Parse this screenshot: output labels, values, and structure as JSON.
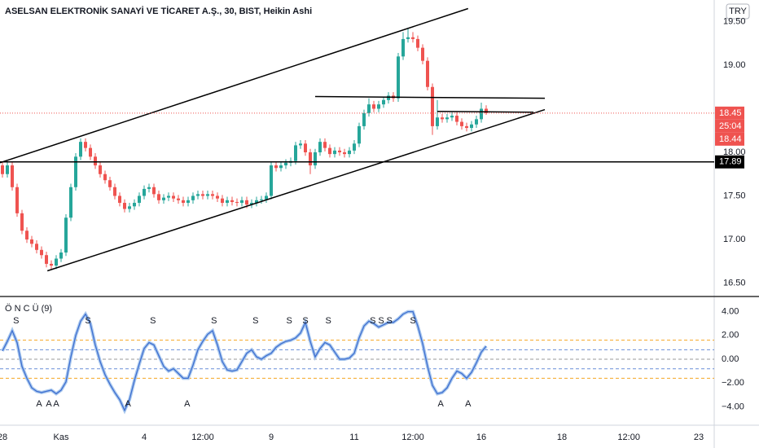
{
  "chart_data": [
    {
      "type": "candlestick",
      "title": "ASELSAN ELEKTRONİK SANAYİ VE TİCARET A.Ş., 30, BIST, Heikin Ashi",
      "currency": "TRY",
      "up_color": "#26a69a",
      "down_color": "#ef5350",
      "xlim": [
        -0.5,
        145.5
      ],
      "xticks": [
        {
          "value": 0,
          "label": "28"
        },
        {
          "value": 12,
          "label": "Kas"
        },
        {
          "value": 29,
          "label": "4"
        },
        {
          "value": 41,
          "label": "12:00"
        },
        {
          "value": 55,
          "label": "9"
        },
        {
          "value": 72,
          "label": "11"
        },
        {
          "value": 84,
          "label": "12:00"
        },
        {
          "value": 98,
          "label": "16"
        },
        {
          "value": 114.5,
          "label": "18"
        },
        {
          "value": 128.2,
          "label": "12:00"
        },
        {
          "value": 142.5,
          "label": "23"
        }
      ],
      "ylim": [
        16.364,
        19.748
      ],
      "yticks": [
        {
          "value": 19.5,
          "label": "19.50"
        },
        {
          "value": 19,
          "label": "19.00"
        },
        {
          "value": 18,
          "label": "18.00"
        },
        {
          "value": 17.5,
          "label": "17.50"
        },
        {
          "value": 17,
          "label": "17.00"
        },
        {
          "value": 16.5,
          "label": "16.50"
        }
      ],
      "candles": [
        [
          17.85,
          17.89,
          17.71,
          17.75
        ],
        [
          17.75,
          17.89,
          17.71,
          17.85
        ],
        [
          17.85,
          17.89,
          17.56,
          17.6
        ],
        [
          17.6,
          17.64,
          17.26,
          17.3
        ],
        [
          17.3,
          17.34,
          17.06,
          17.1
        ],
        [
          17.1,
          17.14,
          16.96,
          17.0
        ],
        [
          17.0,
          17.04,
          16.91,
          16.95
        ],
        [
          16.95,
          16.99,
          16.84,
          16.88
        ],
        [
          16.88,
          16.92,
          16.78,
          16.82
        ],
        [
          16.82,
          16.86,
          16.68,
          16.72
        ],
        [
          16.72,
          16.76,
          16.66,
          16.7
        ],
        [
          16.7,
          16.82,
          16.66,
          16.78
        ],
        [
          16.78,
          16.89,
          16.74,
          16.85
        ],
        [
          16.85,
          17.29,
          16.81,
          17.25
        ],
        [
          17.25,
          17.64,
          17.21,
          17.6
        ],
        [
          17.6,
          17.99,
          17.56,
          17.95
        ],
        [
          17.95,
          18.16,
          17.91,
          18.12
        ],
        [
          18.12,
          18.16,
          18.01,
          18.05
        ],
        [
          18.05,
          18.09,
          17.91,
          17.95
        ],
        [
          17.95,
          17.99,
          17.81,
          17.85
        ],
        [
          17.85,
          17.89,
          17.71,
          17.75
        ],
        [
          17.75,
          17.79,
          17.64,
          17.68
        ],
        [
          17.68,
          17.72,
          17.56,
          17.6
        ],
        [
          17.6,
          17.64,
          17.46,
          17.5
        ],
        [
          17.5,
          17.54,
          17.38,
          17.42
        ],
        [
          17.42,
          17.46,
          17.31,
          17.35
        ],
        [
          17.35,
          17.42,
          17.31,
          17.38
        ],
        [
          17.38,
          17.46,
          17.34,
          17.42
        ],
        [
          17.42,
          17.54,
          17.38,
          17.5
        ],
        [
          17.5,
          17.62,
          17.46,
          17.58
        ],
        [
          17.58,
          17.64,
          17.54,
          17.6
        ],
        [
          17.6,
          17.64,
          17.48,
          17.52
        ],
        [
          17.52,
          17.56,
          17.41,
          17.45
        ],
        [
          17.45,
          17.52,
          17.41,
          17.48
        ],
        [
          17.48,
          17.54,
          17.44,
          17.5
        ],
        [
          17.5,
          17.54,
          17.43,
          17.47
        ],
        [
          17.47,
          17.51,
          17.41,
          17.45
        ],
        [
          17.45,
          17.49,
          17.38,
          17.42
        ],
        [
          17.42,
          17.49,
          17.38,
          17.45
        ],
        [
          17.45,
          17.54,
          17.41,
          17.5
        ],
        [
          17.5,
          17.56,
          17.46,
          17.52
        ],
        [
          17.52,
          17.56,
          17.46,
          17.5
        ],
        [
          17.5,
          17.56,
          17.46,
          17.52
        ],
        [
          17.52,
          17.56,
          17.46,
          17.5
        ],
        [
          17.5,
          17.54,
          17.43,
          17.47
        ],
        [
          17.47,
          17.51,
          17.38,
          17.42
        ],
        [
          17.42,
          17.49,
          17.38,
          17.45
        ],
        [
          17.45,
          17.49,
          17.39,
          17.43
        ],
        [
          17.43,
          17.47,
          17.38,
          17.42
        ],
        [
          17.42,
          17.49,
          17.38,
          17.45
        ],
        [
          17.45,
          17.49,
          17.36,
          17.4
        ],
        [
          17.4,
          17.46,
          17.36,
          17.42
        ],
        [
          17.42,
          17.49,
          17.38,
          17.45
        ],
        [
          17.45,
          17.5,
          17.41,
          17.46
        ],
        [
          17.46,
          17.54,
          17.42,
          17.5
        ],
        [
          17.5,
          17.89,
          17.46,
          17.85
        ],
        [
          17.85,
          17.89,
          17.78,
          17.82
        ],
        [
          17.82,
          17.89,
          17.78,
          17.85
        ],
        [
          17.85,
          17.92,
          17.81,
          17.88
        ],
        [
          17.88,
          17.94,
          17.84,
          17.9
        ],
        [
          17.9,
          18.12,
          17.86,
          18.08
        ],
        [
          18.08,
          18.14,
          18.04,
          18.1
        ],
        [
          18.1,
          18.14,
          17.96,
          18.0
        ],
        [
          18.0,
          18.04,
          17.75,
          17.85
        ],
        [
          17.85,
          18.04,
          17.81,
          18.0
        ],
        [
          18.0,
          18.16,
          17.96,
          18.12
        ],
        [
          18.12,
          18.16,
          18.01,
          18.05
        ],
        [
          18.05,
          18.09,
          17.94,
          17.98
        ],
        [
          17.98,
          18.06,
          17.94,
          18.02
        ],
        [
          18.02,
          18.06,
          17.96,
          18.0
        ],
        [
          18.0,
          18.04,
          17.94,
          17.98
        ],
        [
          17.98,
          18.06,
          17.94,
          18.02
        ],
        [
          18.02,
          18.14,
          17.98,
          18.1
        ],
        [
          18.1,
          18.34,
          18.06,
          18.3
        ],
        [
          18.3,
          18.49,
          18.26,
          18.45
        ],
        [
          18.45,
          18.62,
          18.41,
          18.55
        ],
        [
          18.55,
          18.59,
          18.46,
          18.5
        ],
        [
          18.5,
          18.59,
          18.46,
          18.55
        ],
        [
          18.55,
          18.64,
          18.51,
          18.6
        ],
        [
          18.6,
          18.69,
          18.56,
          18.65
        ],
        [
          18.65,
          18.69,
          18.58,
          18.62
        ],
        [
          18.62,
          19.14,
          18.58,
          19.1
        ],
        [
          19.1,
          19.38,
          19.06,
          19.3
        ],
        [
          19.3,
          19.42,
          19.26,
          19.32
        ],
        [
          19.32,
          19.38,
          19.26,
          19.3
        ],
        [
          19.3,
          19.34,
          19.16,
          19.2
        ],
        [
          19.2,
          19.24,
          19.01,
          19.05
        ],
        [
          19.05,
          19.09,
          18.71,
          18.75
        ],
        [
          18.75,
          18.79,
          18.2,
          18.3
        ],
        [
          18.3,
          18.6,
          18.26,
          18.4
        ],
        [
          18.4,
          18.44,
          18.34,
          18.38
        ],
        [
          18.38,
          18.44,
          18.34,
          18.4
        ],
        [
          18.4,
          18.46,
          18.36,
          18.42
        ],
        [
          18.42,
          18.46,
          18.31,
          18.35
        ],
        [
          18.35,
          18.39,
          18.26,
          18.3
        ],
        [
          18.3,
          18.34,
          18.24,
          18.28
        ],
        [
          18.28,
          18.36,
          18.24,
          18.32
        ],
        [
          18.32,
          18.42,
          18.28,
          18.38
        ],
        [
          18.38,
          18.57,
          18.34,
          18.5
        ],
        [
          18.5,
          18.54,
          18.43,
          18.45
        ]
      ],
      "drawings": [
        {
          "kind": "trend",
          "points": [
            [
              -0.5,
              17.88
            ],
            [
              95.3,
              19.65
            ]
          ]
        },
        {
          "kind": "trend",
          "points": [
            [
              9.2,
              16.64
            ],
            [
              111,
              18.49
            ]
          ]
        },
        {
          "kind": "trend",
          "points": [
            [
              64,
              18.64
            ],
            [
              111,
              18.62
            ]
          ]
        },
        {
          "kind": "trend",
          "points": [
            [
              89,
              18.47
            ],
            [
              108.7,
              18.46
            ]
          ]
        },
        {
          "kind": "horizontal",
          "price": 17.89
        }
      ],
      "price_labels": [
        {
          "value": 18.45,
          "label": "18.45",
          "color": "#ef5350",
          "style": "dotted"
        },
        {
          "value": 18.44,
          "label": "18.44",
          "color": "#ef5350",
          "style": "none"
        },
        {
          "value": 17.89,
          "label": "17.89",
          "color": "#000000",
          "style": "none"
        }
      ],
      "countdown": "25:04"
    },
    {
      "type": "line",
      "title": "Ö N C Ü (9)",
      "color": "#3f6fd0",
      "outline_color": "#a9c8ee",
      "ylim": [
        -5.41,
        5.14
      ],
      "yticks": [
        {
          "value": 4,
          "label": "4.00"
        },
        {
          "value": 2,
          "label": "2.00"
        },
        {
          "value": 0,
          "label": "0.00"
        },
        {
          "value": -2,
          "label": "−2.00"
        },
        {
          "value": -4,
          "label": "−4.00"
        }
      ],
      "levels": [
        {
          "value": 1.6,
          "color": "#f5a623"
        },
        {
          "value": 0.8,
          "color": "#6a8fd8"
        },
        {
          "value": 0,
          "color": "#999999"
        },
        {
          "value": -0.8,
          "color": "#6a8fd8"
        },
        {
          "value": -1.6,
          "color": "#f5a623"
        }
      ],
      "values": [
        0.7,
        1.5,
        2.4,
        1.4,
        -0.6,
        -1.6,
        -2.4,
        -2.7,
        -2.8,
        -2.7,
        -2.6,
        -2.9,
        -2.6,
        -1.9,
        0.2,
        2.0,
        3.2,
        3.8,
        3.0,
        1.2,
        -0.2,
        -1.3,
        -2.1,
        -2.8,
        -3.4,
        -4.3,
        -3.4,
        -1.8,
        -0.4,
        0.9,
        1.4,
        1.2,
        0.3,
        -0.6,
        -1.0,
        -0.8,
        -1.2,
        -1.6,
        -1.6,
        -0.5,
        0.8,
        1.5,
        2.1,
        2.4,
        1.2,
        -0.2,
        -0.9,
        -1.0,
        -0.9,
        -0.2,
        0.5,
        0.8,
        0.2,
        0.0,
        0.3,
        0.5,
        1.0,
        1.3,
        1.5,
        1.6,
        1.8,
        2.2,
        3.1,
        1.5,
        0.2,
        0.9,
        1.4,
        1.2,
        0.6,
        0.0,
        0.0,
        0.1,
        0.5,
        1.8,
        2.8,
        3.2,
        3.0,
        2.7,
        2.9,
        3.1,
        3.1,
        3.4,
        3.8,
        4.0,
        4.0,
        2.8,
        1.3,
        -0.6,
        -2.2,
        -2.9,
        -2.8,
        -2.4,
        -1.6,
        -1.0,
        -1.2,
        -1.6,
        -1.1,
        -0.3,
        0.6,
        1.1
      ],
      "signals": [
        {
          "label": "S",
          "x": 2.8,
          "position": "top"
        },
        {
          "label": "S",
          "x": 17.5,
          "position": "top"
        },
        {
          "label": "S",
          "x": 30.8,
          "position": "top"
        },
        {
          "label": "S",
          "x": 43.3,
          "position": "top"
        },
        {
          "label": "S",
          "x": 51.8,
          "position": "top"
        },
        {
          "label": "S",
          "x": 58.7,
          "position": "top"
        },
        {
          "label": "S",
          "x": 62,
          "position": "top"
        },
        {
          "label": "S",
          "x": 66.7,
          "position": "top"
        },
        {
          "label": "S",
          "x": 75.8,
          "position": "top"
        },
        {
          "label": "S",
          "x": 77.5,
          "position": "top"
        },
        {
          "label": "S",
          "x": 79.2,
          "position": "top"
        },
        {
          "label": "S",
          "x": 84,
          "position": "top"
        },
        {
          "label": "A",
          "x": 7.5,
          "position": "bottom"
        },
        {
          "label": "A",
          "x": 9.5,
          "position": "bottom"
        },
        {
          "label": "A",
          "x": 11,
          "position": "bottom"
        },
        {
          "label": "A",
          "x": 25.7,
          "position": "bottom"
        },
        {
          "label": "A",
          "x": 37.8,
          "position": "bottom"
        },
        {
          "label": "A",
          "x": 89.7,
          "position": "bottom"
        },
        {
          "label": "A",
          "x": 95.3,
          "position": "bottom"
        }
      ]
    }
  ]
}
